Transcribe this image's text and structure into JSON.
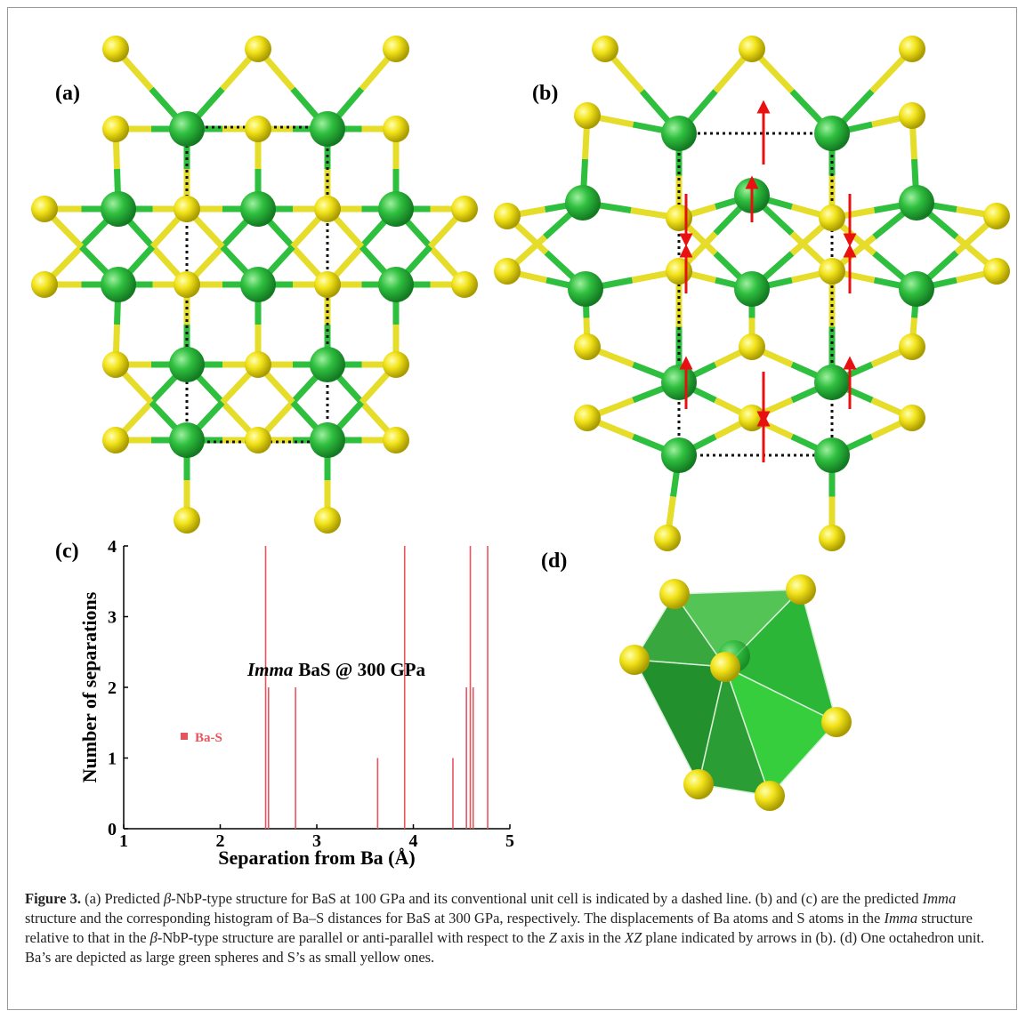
{
  "panel_labels": [
    "(a)",
    "(b)",
    "(c)",
    "(d)"
  ],
  "chart_data": {
    "type": "stem",
    "x_label": "Separation from Ba (Å)",
    "y_label": "Number of separations",
    "annotation": [
      "Imma",
      "BaS @ 300 GPa"
    ],
    "x": [
      2.47,
      2.5,
      2.78,
      3.63,
      3.91,
      4.41,
      4.55,
      4.59,
      4.62,
      4.77
    ],
    "series": [
      {
        "name": "Ba-S",
        "color": "#e8545c",
        "values": [
          4,
          2,
          2,
          1,
          4,
          1,
          2,
          4,
          2,
          4
        ]
      }
    ],
    "xlim": [
      1,
      5
    ],
    "ylim": [
      0,
      4
    ],
    "xticks": [
      1,
      2,
      3,
      4,
      5
    ],
    "yticks": [
      0,
      1,
      2,
      3,
      4
    ]
  },
  "caption": [
    "Figure 3.",
    " (a) Predicted ",
    "β",
    "-NbP-type structure for BaS at 100 GPa and its conventional unit cell is indicated by a dashed line. (b) and (c) are the predicted ",
    "Imma",
    " structure and the corresponding histogram of Ba–S distances for BaS at 300 GPa, respectively. The displacements of Ba atoms and S atoms in the ",
    "Imma",
    " structure relative to that in the ",
    "β",
    "-NbP-type structure are parallel or anti-parallel with respect to the ",
    "Z",
    " axis in the ",
    "XZ",
    " plane indicated by arrows in (b). (d) One octahedron unit. Ba’s are depicted as large green spheres and S’s as small yellow ones."
  ]
}
